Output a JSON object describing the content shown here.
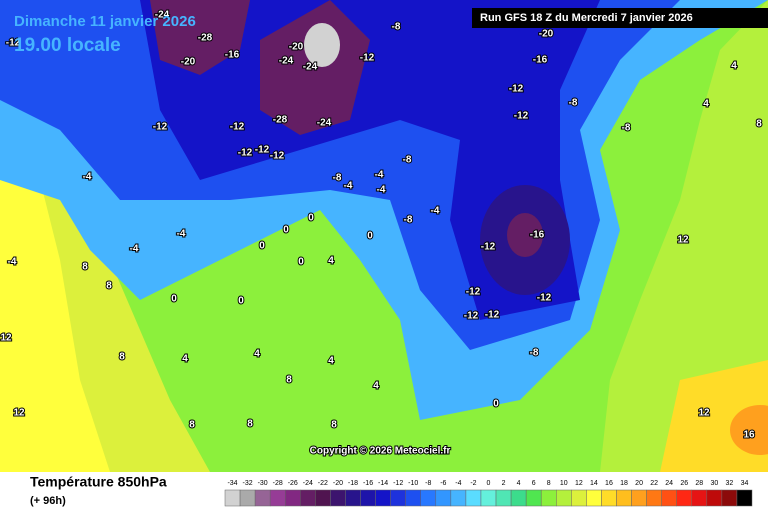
{
  "header": {
    "date": "Dimanche 11 janvier 2026",
    "time": "19.00 locale",
    "run": "Run GFS 18 Z du Mercredi 7 janvier 2026"
  },
  "map": {
    "copyright": "Copyright © 2026 Meteociel.fr",
    "labels": [
      -12,
      -12,
      -12,
      -12,
      -12,
      -16,
      -20,
      -24,
      -28,
      -24,
      -20,
      -24,
      -28,
      -24,
      -12,
      -8,
      -16,
      -20,
      -12,
      -12,
      -8,
      -8,
      4,
      -8,
      -4,
      -8,
      -4,
      -4,
      -8,
      -4,
      -16,
      -12,
      -12,
      -12,
      -12,
      -12,
      -8,
      0,
      -4,
      -4,
      0,
      0,
      0,
      0,
      0,
      0,
      4,
      4,
      4,
      4,
      8,
      8,
      8,
      8,
      8,
      4,
      12,
      16,
      12,
      8,
      4,
      -12,
      -4,
      8,
      12,
      12,
      8,
      0,
      -4
    ]
  },
  "footer": {
    "title": "Température 850hPa",
    "lead": "(+ 96h)"
  },
  "legend": {
    "values": [
      -34,
      -32,
      -30,
      -28,
      -26,
      -24,
      -22,
      -20,
      -18,
      -16,
      -14,
      -12,
      -10,
      -8,
      -6,
      -4,
      -2,
      0,
      2,
      4,
      6,
      8,
      10,
      12,
      14,
      16,
      18,
      20,
      22,
      24,
      26,
      28,
      30,
      32,
      34
    ],
    "colors": [
      "#d2d2d2",
      "#aaaaaa",
      "#966496",
      "#963c96",
      "#822882",
      "#641e64",
      "#501450",
      "#3c146e",
      "#28148c",
      "#1e14aa",
      "#1414c8",
      "#1e32dc",
      "#1e50f0",
      "#2878ff",
      "#3296ff",
      "#46b4ff",
      "#5adcff",
      "#64f0dc",
      "#50e6b4",
      "#3cdc8c",
      "#50e650",
      "#8cf03c",
      "#b4f03c",
      "#dcf03c",
      "#ffff3c",
      "#ffdc28",
      "#ffbe1e",
      "#ffa01e",
      "#ff7814",
      "#ff5014",
      "#ff2814",
      "#e61414",
      "#be0a0a",
      "#8c0a0a",
      "#000000"
    ]
  }
}
